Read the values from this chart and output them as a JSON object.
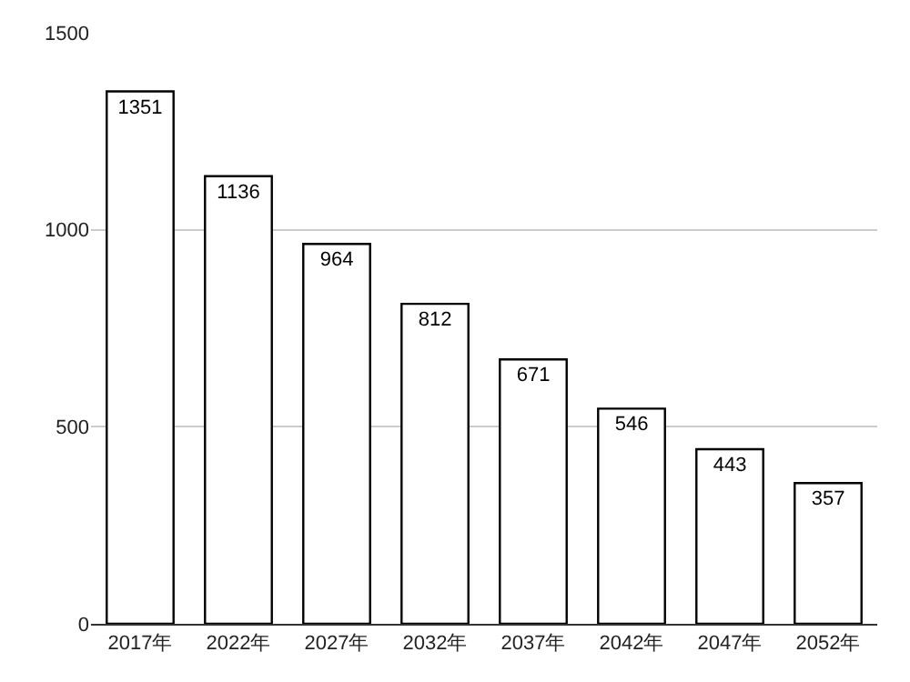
{
  "chart_data": {
    "type": "bar",
    "categories": [
      "2017年",
      "2022年",
      "2027年",
      "2032年",
      "2037年",
      "2042年",
      "2047年",
      "2052年"
    ],
    "values": [
      1351,
      1136,
      964,
      812,
      671,
      546,
      443,
      357
    ],
    "color": "#ffffff",
    "ylim": [
      0,
      1500
    ],
    "yticks": [
      0,
      500,
      1000,
      1500
    ],
    "grid": "y",
    "data_labels": true,
    "legend": false
  }
}
